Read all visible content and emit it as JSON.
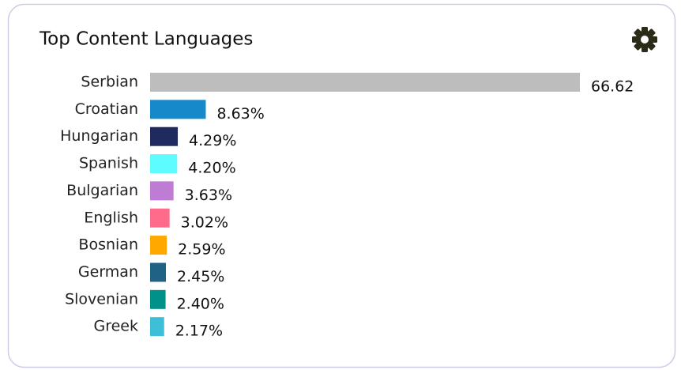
{
  "chart_data": {
    "type": "hbar",
    "title": "Top Content Languages",
    "categories": [
      "Serbian",
      "Croatian",
      "Hungarian",
      "Spanish",
      "Bulgarian",
      "English",
      "Bosnian",
      "German",
      "Slovenian",
      "Greek"
    ],
    "values": [
      66.62,
      8.63,
      4.29,
      4.2,
      3.63,
      3.02,
      2.59,
      2.45,
      2.4,
      2.17
    ],
    "value_labels": [
      "66.62",
      "8.63%",
      "4.29%",
      "4.20%",
      "3.63%",
      "3.02%",
      "2.59%",
      "2.45%",
      "2.40%",
      "2.17%"
    ],
    "colors": [
      "#bdbdbd",
      "#1589c9",
      "#1f2a5e",
      "#5ffcff",
      "#bf7cd4",
      "#ff6b8b",
      "#ffa900",
      "#1f6285",
      "#00928a",
      "#3dbfd8"
    ]
  }
}
